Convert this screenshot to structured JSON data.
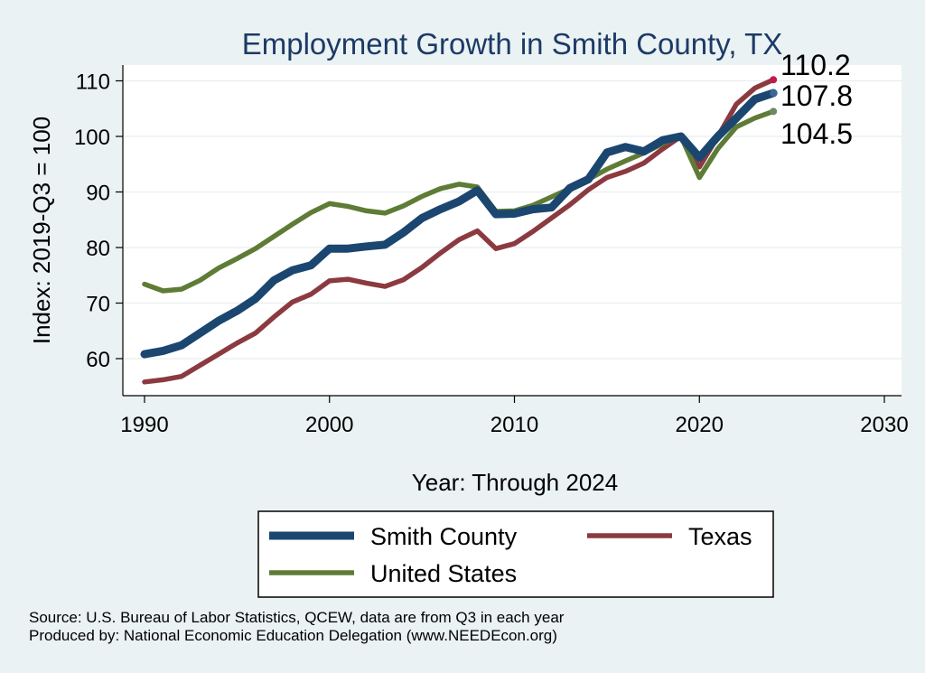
{
  "chart_data": {
    "type": "line",
    "title": "Employment Growth in Smith County, TX",
    "xlabel": "Year: Through 2024",
    "ylabel": "Index: 2019-Q3 = 100",
    "xlim": [
      1990,
      2030
    ],
    "ylim": [
      53,
      113
    ],
    "x_ticks": [
      1990,
      2000,
      2010,
      2020,
      2030
    ],
    "y_ticks": [
      60,
      70,
      80,
      90,
      100,
      110
    ],
    "grid": true,
    "legend_position": "bottom",
    "x": [
      1990,
      1991,
      1992,
      1993,
      1994,
      1995,
      1996,
      1997,
      1998,
      1999,
      2000,
      2001,
      2002,
      2003,
      2004,
      2005,
      2006,
      2007,
      2008,
      2009,
      2010,
      2011,
      2012,
      2013,
      2014,
      2015,
      2016,
      2017,
      2018,
      2019,
      2020,
      2021,
      2022,
      2023,
      2024
    ],
    "series": [
      {
        "key": "texas",
        "name": "Texas",
        "color": "#8b3a40",
        "end_marker_color": "#c4194a",
        "end_label": "110.2",
        "values": [
          55.8,
          56.2,
          56.8,
          58.8,
          60.8,
          62.8,
          64.6,
          67.5,
          70.2,
          71.6,
          74.0,
          74.3,
          73.6,
          73.0,
          74.2,
          76.4,
          79.0,
          81.4,
          83.0,
          79.8,
          80.7,
          82.9,
          85.3,
          87.7,
          90.4,
          92.6,
          93.7,
          95.2,
          97.7,
          100.0,
          94.5,
          100.0,
          105.8,
          108.7,
          110.2
        ]
      },
      {
        "key": "us",
        "name": "United States",
        "color": "#5e7c35",
        "end_marker_color": "#6b8a64",
        "end_label": "104.5",
        "values": [
          73.4,
          72.2,
          72.5,
          74.1,
          76.3,
          78.0,
          79.8,
          82.0,
          84.2,
          86.3,
          87.9,
          87.4,
          86.6,
          86.2,
          87.5,
          89.2,
          90.6,
          91.4,
          90.9,
          86.5,
          86.6,
          87.6,
          89.1,
          90.6,
          92.3,
          94.1,
          95.6,
          97.0,
          98.7,
          100.0,
          92.6,
          97.8,
          101.7,
          103.3,
          104.5
        ]
      },
      {
        "key": "smith",
        "name": "Smith  County",
        "color": "#1b4670",
        "end_marker_color": "#3a6a93",
        "end_label": "107.8",
        "values": [
          60.8,
          61.4,
          62.4,
          64.6,
          66.8,
          68.6,
          70.8,
          74.1,
          75.9,
          76.8,
          79.8,
          79.8,
          80.2,
          80.5,
          82.7,
          85.3,
          86.9,
          88.3,
          90.3,
          86.0,
          86.1,
          86.9,
          87.2,
          90.7,
          92.3,
          97.1,
          98.1,
          97.3,
          99.3,
          100.0,
          96.2,
          100.0,
          103.3,
          106.7,
          107.8
        ]
      }
    ],
    "legend": [
      {
        "series": "smith",
        "label": "Smith  County"
      },
      {
        "series": "texas",
        "label": "Texas"
      },
      {
        "series": "us",
        "label": "United States"
      }
    ],
    "notes": [
      "Source: U.S. Bureau of Labor Statistics, QCEW, data are from Q3 in each year",
      "Produced by: National Economic Education Delegation (www.NEEDEcon.org)"
    ]
  },
  "colors": {
    "background": "#eaf2f3",
    "plot_background": "#ffffff",
    "title": "#1d3a66",
    "gridline": "#e7eeef",
    "axis": "#000000"
  }
}
